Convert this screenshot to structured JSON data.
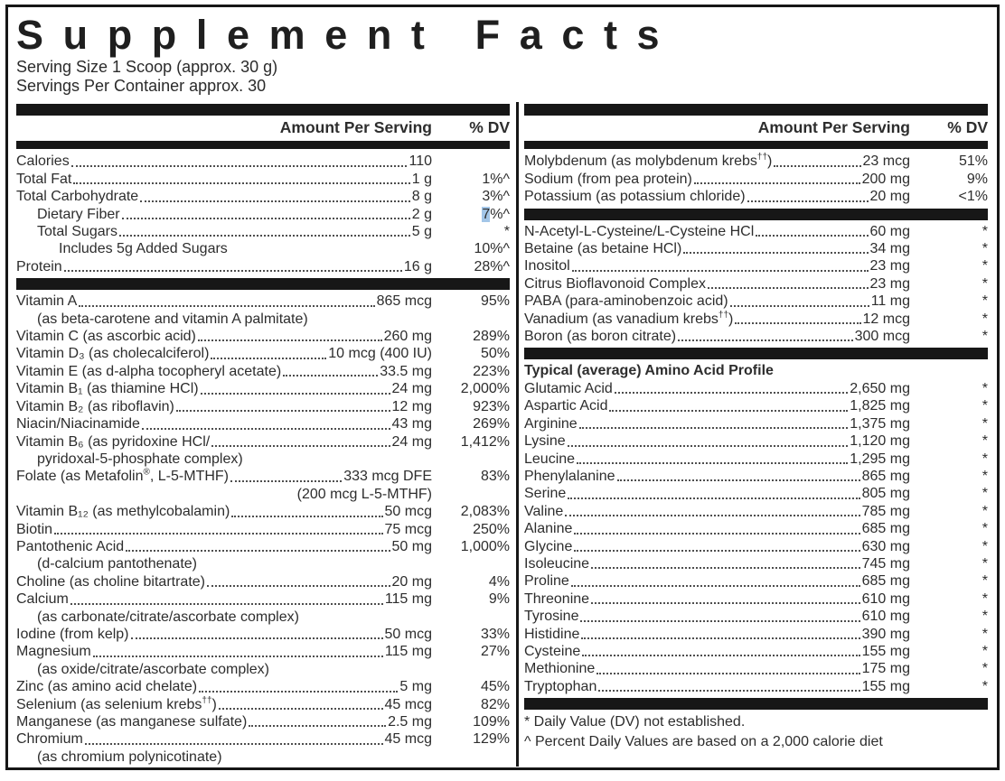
{
  "title": "Supplement Facts",
  "serving_info": {
    "serving_size": "Serving Size 1 Scoop (approx. 30 g)",
    "servings_per_container": "Servings Per Container approx. 30"
  },
  "table_header": {
    "amount": "Amount Per Serving",
    "dv": "% DV"
  },
  "highlight_color": "#a3c6e8",
  "columns": {
    "left": {
      "sections": [
        {
          "rows": [
            {
              "name": "Calories",
              "amount": "110",
              "dv": "",
              "dots": true,
              "indent": 0
            },
            {
              "name": "Total Fat",
              "amount": "1 g",
              "dv": "1%^",
              "dots": true,
              "indent": 0
            },
            {
              "name": "Total Carbohydrate",
              "amount": "8 g",
              "dv": "3%^",
              "dots": true,
              "indent": 0
            },
            {
              "name": "Dietary Fiber",
              "amount": "2 g",
              "dv": "7%^",
              "dots": true,
              "indent": 1,
              "dv_highlight": true
            },
            {
              "name": "Total Sugars",
              "amount": "5 g",
              "dv": "*",
              "dots": true,
              "indent": 1
            },
            {
              "name": "Includes 5g Added Sugars",
              "amount": "",
              "dv": "10%^",
              "dots": false,
              "indent": 2
            },
            {
              "name": "Protein",
              "amount": "16 g",
              "dv": "28%^",
              "dots": true,
              "indent": 0
            }
          ]
        },
        {
          "rows": [
            {
              "name": "Vitamin A",
              "amount": "865 mcg",
              "dv": "95%",
              "dots": true
            },
            {
              "name": "(as beta-carotene and vitamin A palmitate)",
              "cont": true
            },
            {
              "name": "Vitamin C (as ascorbic acid)",
              "amount": "260 mg",
              "dv": "289%",
              "dots": true
            },
            {
              "name": "Vitamin D₃ (as cholecalciferol)",
              "amount": "10 mcg (400 IU)",
              "dv": "50%",
              "dots": true
            },
            {
              "name": "Vitamin E (as d-alpha tocopheryl acetate)",
              "amount": "33.5 mg",
              "dv": "223%",
              "dots": true
            },
            {
              "name": "Vitamin B₁ (as thiamine HCl)",
              "amount": "24 mg",
              "dv": "2,000%",
              "dots": true
            },
            {
              "name": "Vitamin B₂ (as riboflavin)",
              "amount": "12 mg",
              "dv": "923%",
              "dots": true
            },
            {
              "name": "Niacin/Niacinamide",
              "amount": "43 mg",
              "dv": "269%",
              "dots": true
            },
            {
              "name": "Vitamin B₆ (as pyridoxine HCl/",
              "amount": "24 mg",
              "dv": "1,412%",
              "dots": true
            },
            {
              "name": "pyridoxal-5-phosphate complex)",
              "cont": true
            },
            {
              "name": "Folate (as Metafolin®, L-5-MTHF)",
              "amount": "333 mcg DFE",
              "dv": "83%",
              "dots": true
            },
            {
              "name": "",
              "amount": "(200 mcg L-5-MTHF)",
              "amount_cont": true
            },
            {
              "name": "Vitamin B₁₂ (as methylcobalamin)",
              "amount": "50 mcg",
              "dv": "2,083%",
              "dots": true
            },
            {
              "name": "Biotin",
              "amount": "75 mcg",
              "dv": "250%",
              "dots": true
            },
            {
              "name": "Pantothenic Acid",
              "amount": "50 mg",
              "dv": "1,000%",
              "dots": true
            },
            {
              "name": "(d-calcium pantothenate)",
              "cont": true
            },
            {
              "name": "Choline (as choline bitartrate)",
              "amount": "20 mg",
              "dv": "4%",
              "dots": true
            },
            {
              "name": "Calcium",
              "amount": "115 mg",
              "dv": "9%",
              "dots": true
            },
            {
              "name": "(as carbonate/citrate/ascorbate complex)",
              "cont": true
            },
            {
              "name": "Iodine (from kelp)",
              "amount": "50 mcg",
              "dv": "33%",
              "dots": true
            },
            {
              "name": "Magnesium",
              "amount": "115 mg",
              "dv": "27%",
              "dots": true
            },
            {
              "name": "(as oxide/citrate/ascorbate complex)",
              "cont": true
            },
            {
              "name": "Zinc (as amino acid chelate)",
              "amount": "5 mg",
              "dv": "45%",
              "dots": true
            },
            {
              "name": "Selenium (as selenium krebs††)",
              "amount": "45 mcg",
              "dv": "82%",
              "dots": true
            },
            {
              "name": "Manganese (as manganese sulfate)",
              "amount": "2.5 mg",
              "dv": "109%",
              "dots": true
            },
            {
              "name": "Chromium",
              "amount": "45 mcg",
              "dv": "129%",
              "dots": true
            },
            {
              "name": "(as chromium polynicotinate)",
              "cont": true
            }
          ]
        }
      ]
    },
    "right": {
      "sections": [
        {
          "rows": [
            {
              "name": "Molybdenum (as molybdenum krebs††)",
              "amount": "23 mcg",
              "dv": "51%",
              "dots": true
            },
            {
              "name": "Sodium (from pea protein)",
              "amount": "200 mg",
              "dv": "9%",
              "dots": true
            },
            {
              "name": "Potassium (as potassium chloride)",
              "amount": "20 mg",
              "dv": "<1%",
              "dots": true
            }
          ]
        },
        {
          "rows": [
            {
              "name": "N-Acetyl-L-Cysteine/L-Cysteine HCl",
              "amount": "60 mg",
              "dv": "*",
              "dots": true
            },
            {
              "name": "Betaine (as betaine HCl)",
              "amount": "34 mg",
              "dv": "*",
              "dots": true
            },
            {
              "name": "Inositol",
              "amount": "23 mg",
              "dv": "*",
              "dots": true
            },
            {
              "name": "Citrus Bioflavonoid Complex",
              "amount": "23 mg",
              "dv": "*",
              "dots": true
            },
            {
              "name": "PABA (para-aminobenzoic acid)",
              "amount": "11 mg",
              "dv": "*",
              "dots": true
            },
            {
              "name": "Vanadium (as vanadium krebs††)",
              "amount": "12 mcg",
              "dv": "*",
              "dots": true
            },
            {
              "name": "Boron (as boron citrate)",
              "amount": "300 mcg",
              "dv": "*",
              "dots": true
            }
          ]
        },
        {
          "title": "Typical (average) Amino Acid Profile",
          "rows": [
            {
              "name": "Glutamic Acid",
              "amount": "2,650 mg",
              "dv": "*",
              "dots": true
            },
            {
              "name": "Aspartic Acid",
              "amount": "1,825 mg",
              "dv": "*",
              "dots": true
            },
            {
              "name": "Arginine",
              "amount": "1,375 mg",
              "dv": "*",
              "dots": true
            },
            {
              "name": "Lysine",
              "amount": "1,120 mg",
              "dv": "*",
              "dots": true
            },
            {
              "name": "Leucine",
              "amount": "1,295 mg",
              "dv": "*",
              "dots": true
            },
            {
              "name": "Phenylalanine",
              "amount": "865 mg",
              "dv": "*",
              "dots": true
            },
            {
              "name": "Serine",
              "amount": "805 mg",
              "dv": "*",
              "dots": true
            },
            {
              "name": "Valine",
              "amount": "785 mg",
              "dv": "*",
              "dots": true
            },
            {
              "name": "Alanine",
              "amount": "685 mg",
              "dv": "*",
              "dots": true
            },
            {
              "name": "Glycine",
              "amount": "630 mg",
              "dv": "*",
              "dots": true
            },
            {
              "name": "Isoleucine",
              "amount": "745 mg",
              "dv": "*",
              "dots": true
            },
            {
              "name": "Proline",
              "amount": "685 mg",
              "dv": "*",
              "dots": true
            },
            {
              "name": "Threonine",
              "amount": "610 mg",
              "dv": "*",
              "dots": true
            },
            {
              "name": "Tyrosine",
              "amount": "610 mg",
              "dv": "*",
              "dots": true
            },
            {
              "name": "Histidine",
              "amount": "390 mg",
              "dv": "*",
              "dots": true
            },
            {
              "name": "Cysteine",
              "amount": "155 mg",
              "dv": "*",
              "dots": true
            },
            {
              "name": "Methionine",
              "amount": "175 mg",
              "dv": "*",
              "dots": true
            },
            {
              "name": "Tryptophan",
              "amount": "155 mg",
              "dv": "*",
              "dots": true
            }
          ]
        },
        {
          "footnotes": [
            "* Daily Value (DV) not established.",
            "^ Percent Daily Values are based on a 2,000 calorie diet"
          ]
        }
      ]
    }
  }
}
